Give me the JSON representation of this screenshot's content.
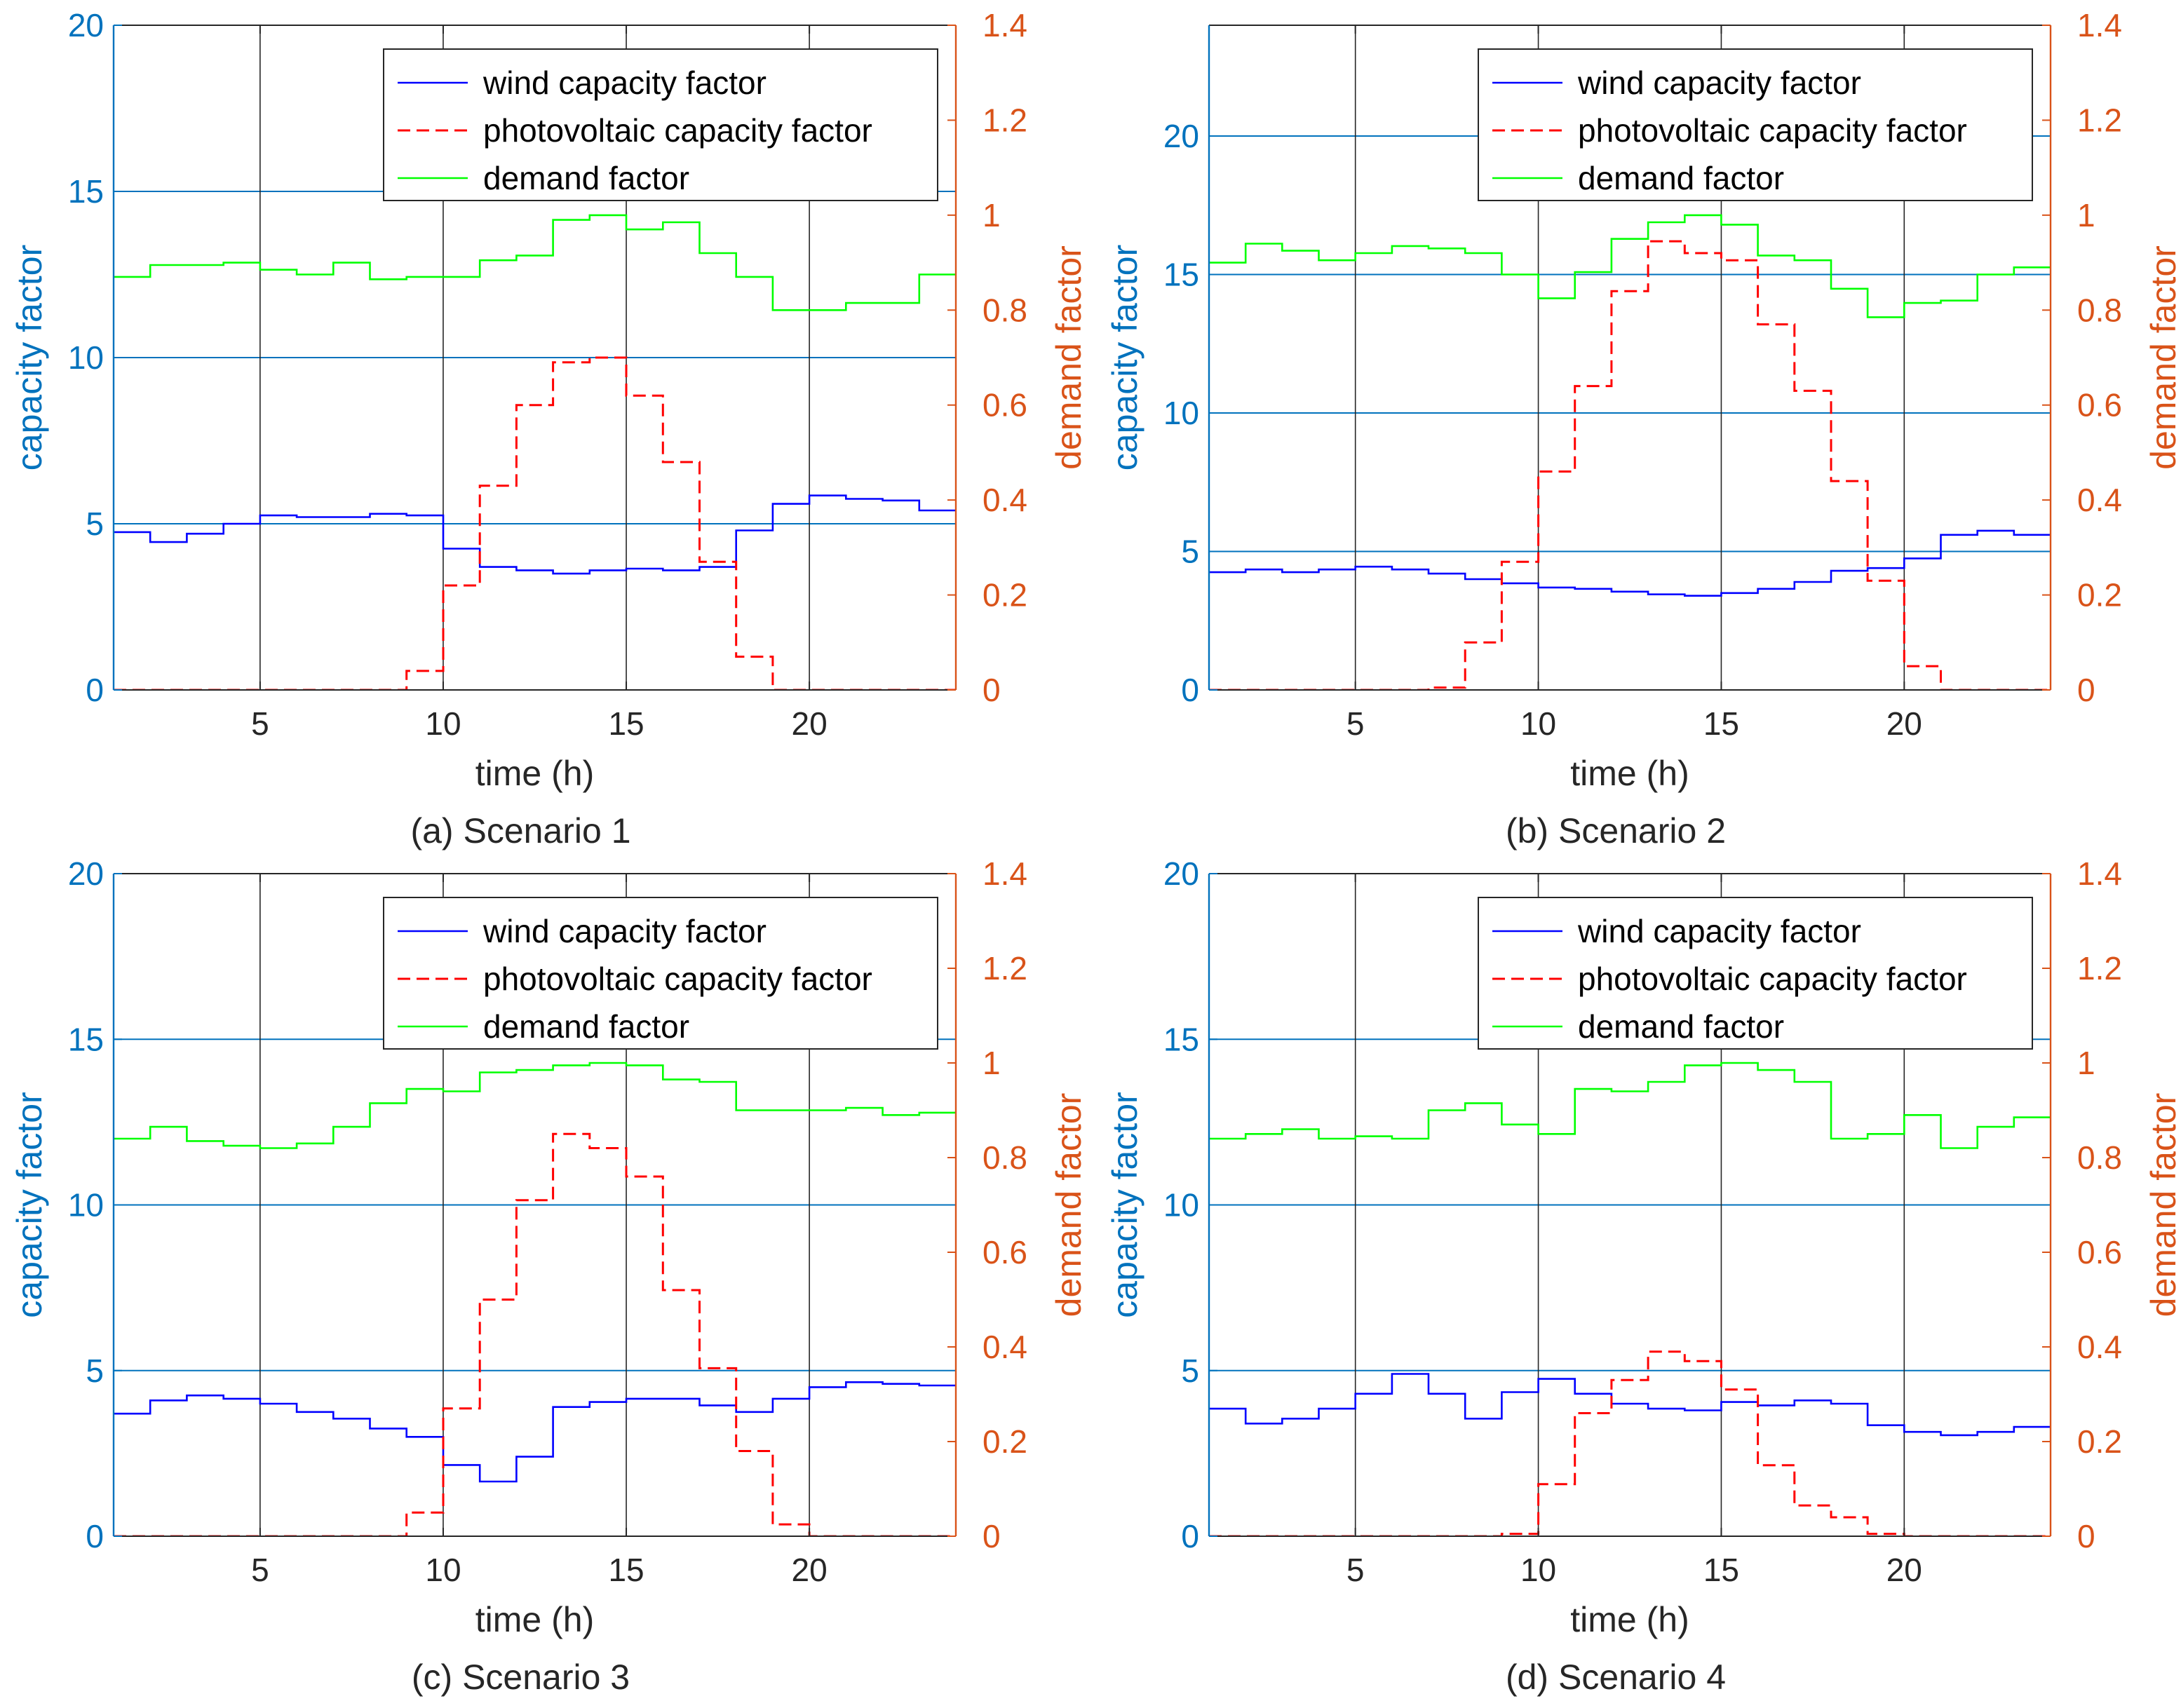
{
  "colors": {
    "left_axis": "#0072BD",
    "right_axis": "#D95319",
    "wind": "#0000FF",
    "pv": "#FF0000",
    "demand": "#00FF00",
    "grid_v": "#262626",
    "grid_h": "#0072BD"
  },
  "chart_data": [
    {
      "type": "line",
      "step": true,
      "caption": "(a) Scenario 1",
      "xlabel": "time (h)",
      "ylabel_left": "capacity factor",
      "ylabel_right": "demand factor",
      "xlim": [
        1,
        24
      ],
      "ylim_left": [
        0,
        20
      ],
      "ylim_right": [
        0,
        1.4
      ],
      "xticks": [
        "5",
        "10",
        "15",
        "20"
      ],
      "yticks_left": [
        "0",
        "5",
        "10",
        "15",
        "20"
      ],
      "yticks_right": [
        "0",
        "0.2",
        "0.4",
        "0.6",
        "0.8",
        "1",
        "1.2",
        "1.4"
      ],
      "x": [
        1,
        2,
        3,
        4,
        5,
        6,
        7,
        8,
        9,
        10,
        11,
        12,
        13,
        14,
        15,
        16,
        17,
        18,
        19,
        20,
        21,
        22,
        23,
        24
      ],
      "series": [
        {
          "name": "wind capacity factor",
          "axis": "left",
          "style": "solid",
          "values": [
            4.75,
            4.45,
            4.7,
            5.0,
            5.25,
            5.2,
            5.2,
            5.3,
            5.25,
            4.25,
            3.7,
            3.6,
            3.5,
            3.6,
            3.65,
            3.6,
            3.7,
            4.8,
            5.6,
            5.85,
            5.75,
            5.7,
            5.4,
            5.4
          ]
        },
        {
          "name": "photovoltaic capacity factor",
          "axis": "right",
          "style": "dashed",
          "values": [
            0,
            0,
            0,
            0,
            0,
            0,
            0,
            0,
            0.04,
            0.22,
            0.43,
            0.6,
            0.69,
            0.7,
            0.62,
            0.48,
            0.27,
            0.07,
            0,
            0,
            0,
            0,
            0,
            0
          ]
        },
        {
          "name": "demand factor",
          "axis": "right",
          "style": "solid",
          "values": [
            0.87,
            0.895,
            0.895,
            0.9,
            0.885,
            0.875,
            0.9,
            0.865,
            0.87,
            0.87,
            0.905,
            0.915,
            0.99,
            1.0,
            0.97,
            0.985,
            0.92,
            0.87,
            0.8,
            0.8,
            0.815,
            0.815,
            0.875,
            0.875
          ]
        }
      ],
      "legend": "top-right"
    },
    {
      "type": "line",
      "step": true,
      "caption": "(b) Scenario 2",
      "xlabel": "time (h)",
      "ylabel_left": "capacity factor",
      "ylabel_right": "demand factor",
      "xlim": [
        1,
        24
      ],
      "ylim_left": [
        0,
        24
      ],
      "ylim_right": [
        0,
        1.4
      ],
      "xticks": [
        "5",
        "10",
        "15",
        "20"
      ],
      "yticks_left": [
        "0",
        "5",
        "10",
        "15",
        "20"
      ],
      "yticks_right": [
        "0",
        "0.2",
        "0.4",
        "0.6",
        "0.8",
        "1",
        "1.2",
        "1.4"
      ],
      "x": [
        1,
        2,
        3,
        4,
        5,
        6,
        7,
        8,
        9,
        10,
        11,
        12,
        13,
        14,
        15,
        16,
        17,
        18,
        19,
        20,
        21,
        22,
        23,
        24
      ],
      "series": [
        {
          "name": "wind capacity factor",
          "axis": "left",
          "style": "solid",
          "values": [
            4.25,
            4.35,
            4.25,
            4.35,
            4.45,
            4.35,
            4.2,
            4.0,
            3.85,
            3.7,
            3.65,
            3.55,
            3.45,
            3.4,
            3.5,
            3.65,
            3.9,
            4.3,
            4.4,
            4.75,
            5.6,
            5.75,
            5.6,
            5.6
          ]
        },
        {
          "name": "photovoltaic capacity factor",
          "axis": "right",
          "style": "dashed",
          "values": [
            0,
            0,
            0,
            0,
            0,
            0,
            0.005,
            0.1,
            0.27,
            0.46,
            0.64,
            0.84,
            0.945,
            0.92,
            0.905,
            0.77,
            0.63,
            0.44,
            0.23,
            0.05,
            0,
            0,
            0,
            0
          ]
        },
        {
          "name": "demand factor",
          "axis": "right",
          "style": "solid",
          "values": [
            0.9,
            0.94,
            0.925,
            0.905,
            0.92,
            0.935,
            0.93,
            0.92,
            0.875,
            0.825,
            0.88,
            0.95,
            0.985,
            1.0,
            0.98,
            0.915,
            0.905,
            0.845,
            0.785,
            0.815,
            0.82,
            0.875,
            0.89,
            0.89
          ]
        }
      ],
      "legend": "top-right"
    },
    {
      "type": "line",
      "step": true,
      "caption": "(c) Scenario 3",
      "xlabel": "time (h)",
      "ylabel_left": "capacity factor",
      "ylabel_right": "demand factor",
      "xlim": [
        1,
        24
      ],
      "ylim_left": [
        0,
        20
      ],
      "ylim_right": [
        0,
        1.4
      ],
      "xticks": [
        "5",
        "10",
        "15",
        "20"
      ],
      "yticks_left": [
        "0",
        "5",
        "10",
        "15",
        "20"
      ],
      "yticks_right": [
        "0",
        "0.2",
        "0.4",
        "0.6",
        "0.8",
        "1",
        "1.2",
        "1.4"
      ],
      "x": [
        1,
        2,
        3,
        4,
        5,
        6,
        7,
        8,
        9,
        10,
        11,
        12,
        13,
        14,
        15,
        16,
        17,
        18,
        19,
        20,
        21,
        22,
        23,
        24
      ],
      "series": [
        {
          "name": "wind capacity factor",
          "axis": "left",
          "style": "solid",
          "values": [
            3.7,
            4.1,
            4.25,
            4.15,
            4.0,
            3.75,
            3.55,
            3.25,
            3.0,
            2.15,
            1.65,
            2.4,
            3.9,
            4.05,
            4.15,
            4.15,
            3.95,
            3.75,
            4.15,
            4.5,
            4.65,
            4.6,
            4.55,
            4.55
          ]
        },
        {
          "name": "photovoltaic capacity factor",
          "axis": "right",
          "style": "dashed",
          "values": [
            0,
            0,
            0,
            0,
            0,
            0,
            0,
            0,
            0.05,
            0.27,
            0.5,
            0.71,
            0.85,
            0.82,
            0.76,
            0.52,
            0.355,
            0.18,
            0.025,
            0,
            0,
            0,
            0,
            0
          ]
        },
        {
          "name": "demand factor",
          "axis": "right",
          "style": "solid",
          "values": [
            0.84,
            0.865,
            0.835,
            0.825,
            0.82,
            0.83,
            0.865,
            0.915,
            0.945,
            0.94,
            0.98,
            0.985,
            0.995,
            1.0,
            0.995,
            0.965,
            0.96,
            0.9,
            0.9,
            0.9,
            0.905,
            0.89,
            0.895,
            0.895
          ]
        }
      ],
      "legend": "top-right"
    },
    {
      "type": "line",
      "step": true,
      "caption": "(d) Scenario 4",
      "xlabel": "time (h)",
      "ylabel_left": "capacity factor",
      "ylabel_right": "demand factor",
      "xlim": [
        1,
        24
      ],
      "ylim_left": [
        0,
        20
      ],
      "ylim_right": [
        0,
        1.4
      ],
      "xticks": [
        "5",
        "10",
        "15",
        "20"
      ],
      "yticks_left": [
        "0",
        "5",
        "10",
        "15",
        "20"
      ],
      "yticks_right": [
        "0",
        "0.2",
        "0.4",
        "0.6",
        "0.8",
        "1",
        "1.2",
        "1.4"
      ],
      "x": [
        1,
        2,
        3,
        4,
        5,
        6,
        7,
        8,
        9,
        10,
        11,
        12,
        13,
        14,
        15,
        16,
        17,
        18,
        19,
        20,
        21,
        22,
        23,
        24
      ],
      "series": [
        {
          "name": "wind capacity factor",
          "axis": "left",
          "style": "solid",
          "values": [
            3.85,
            3.4,
            3.55,
            3.85,
            4.3,
            4.9,
            4.3,
            3.55,
            4.35,
            4.75,
            4.3,
            4.0,
            3.85,
            3.8,
            4.05,
            3.95,
            4.1,
            4.0,
            3.35,
            3.15,
            3.05,
            3.15,
            3.3,
            3.3
          ]
        },
        {
          "name": "photovoltaic capacity factor",
          "axis": "right",
          "style": "dashed",
          "values": [
            0,
            0,
            0,
            0,
            0,
            0,
            0,
            0,
            0.005,
            0.11,
            0.26,
            0.33,
            0.39,
            0.37,
            0.31,
            0.15,
            0.065,
            0.04,
            0.005,
            0,
            0,
            0,
            0,
            0
          ]
        },
        {
          "name": "demand factor",
          "axis": "right",
          "style": "solid",
          "values": [
            0.84,
            0.85,
            0.86,
            0.84,
            0.845,
            0.84,
            0.9,
            0.915,
            0.87,
            0.85,
            0.945,
            0.94,
            0.96,
            0.995,
            1.0,
            0.985,
            0.96,
            0.84,
            0.85,
            0.89,
            0.82,
            0.865,
            0.885,
            0.885
          ]
        }
      ],
      "legend": "top-right"
    }
  ]
}
